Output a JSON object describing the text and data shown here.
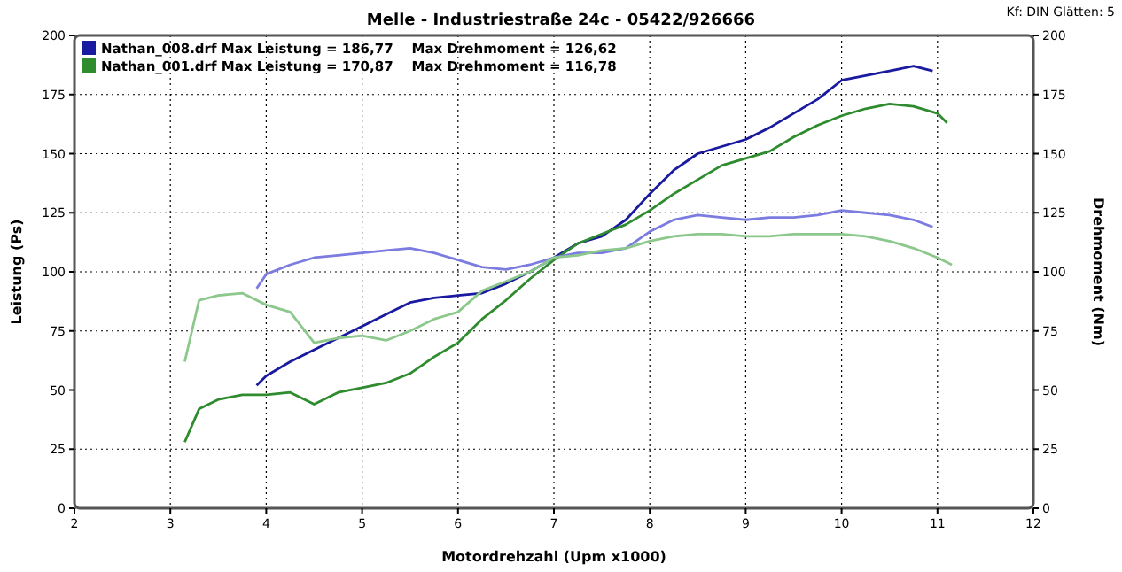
{
  "chart_data": {
    "type": "line",
    "title": "Melle - Industriestraße 24c - 05422/926666",
    "xlabel": "Motordrehzahl (Upm x1000)",
    "ylabel": "Leistung (Ps)",
    "y2label": "Drehmoment (Nm)",
    "annotations": [
      "Kf: DIN  Glätten: 5"
    ],
    "xlim": [
      2,
      12
    ],
    "xticks": [
      2,
      3,
      4,
      5,
      6,
      7,
      8,
      9,
      10,
      11,
      12
    ],
    "ylim": [
      0,
      200
    ],
    "yticks": [
      0,
      25,
      50,
      75,
      100,
      125,
      150,
      175,
      200
    ],
    "y2lim": [
      0,
      200
    ],
    "y2ticks": [
      0,
      25,
      50,
      75,
      100,
      125,
      150,
      175,
      200
    ],
    "grid": true,
    "legend": "top left",
    "line_style": "solid",
    "marker": "none",
    "series": [
      {
        "name": "Nathan_008.drf Max Leistung = 186,77    Max Drehmoment = 126,62",
        "color": "#1a1aa0",
        "x": [
          3.9,
          4,
          4.25,
          4.5,
          4.75,
          5,
          5.25,
          5.5,
          5.75,
          6,
          6.25,
          6.5,
          6.75,
          7,
          7.25,
          7.5,
          7.75,
          8,
          8.25,
          8.5,
          8.75,
          9,
          9.25,
          9.5,
          9.75,
          10,
          10.25,
          10.5,
          10.75,
          10.95
        ],
        "values": [
          52,
          56,
          62,
          67,
          72,
          77,
          82,
          87,
          89,
          90,
          91,
          95,
          100,
          106,
          112,
          115,
          122,
          133,
          143,
          150,
          153,
          156,
          161,
          167,
          173,
          181,
          183,
          185,
          187,
          185
        ]
      },
      {
        "name": "Nathan_001.drf Max Leistung = 170,87    Max Drehmoment = 116,78",
        "color": "#2e8b2e",
        "x": [
          3.15,
          3.3,
          3.5,
          3.75,
          4,
          4.25,
          4.5,
          4.75,
          5,
          5.25,
          5.5,
          5.75,
          6,
          6.25,
          6.5,
          6.75,
          7,
          7.25,
          7.5,
          7.75,
          8,
          8.25,
          8.5,
          8.75,
          9,
          9.25,
          9.5,
          9.75,
          10,
          10.25,
          10.5,
          10.75,
          11,
          11.1
        ],
        "values": [
          28,
          42,
          46,
          48,
          48,
          49,
          44,
          49,
          51,
          53,
          57,
          64,
          70,
          80,
          88,
          97,
          105,
          112,
          116,
          120,
          126,
          133,
          139,
          145,
          148,
          151,
          157,
          162,
          166,
          169,
          171,
          170,
          167,
          163
        ]
      },
      {
        "color": "#7b7be0",
        "x": [
          3.9,
          4,
          4.25,
          4.5,
          4.75,
          5,
          5.25,
          5.5,
          5.75,
          6,
          6.25,
          6.5,
          6.75,
          7,
          7.25,
          7.5,
          7.75,
          8,
          8.25,
          8.5,
          8.75,
          9,
          9.25,
          9.5,
          9.75,
          10,
          10.25,
          10.5,
          10.75,
          10.95
        ],
        "values": [
          93,
          99,
          103,
          106,
          107,
          108,
          109,
          110,
          108,
          105,
          102,
          101,
          103,
          106,
          108,
          108,
          110,
          117,
          122,
          124,
          123,
          122,
          123,
          123,
          124,
          126,
          125,
          124,
          122,
          119
        ]
      },
      {
        "color": "#8cc88c",
        "x": [
          3.15,
          3.3,
          3.5,
          3.75,
          4,
          4.25,
          4.5,
          4.75,
          5,
          5.25,
          5.5,
          5.75,
          6,
          6.25,
          6.5,
          6.75,
          7,
          7.25,
          7.5,
          7.75,
          8,
          8.25,
          8.5,
          8.75,
          9,
          9.25,
          9.5,
          9.75,
          10,
          10.25,
          10.5,
          10.75,
          11,
          11.15
        ],
        "values": [
          62,
          88,
          90,
          91,
          86,
          83,
          70,
          72,
          73,
          71,
          75,
          80,
          83,
          92,
          96,
          100,
          106,
          107,
          109,
          110,
          113,
          115,
          116,
          116,
          115,
          115,
          116,
          116,
          116,
          115,
          113,
          110,
          106,
          103
        ]
      }
    ]
  }
}
